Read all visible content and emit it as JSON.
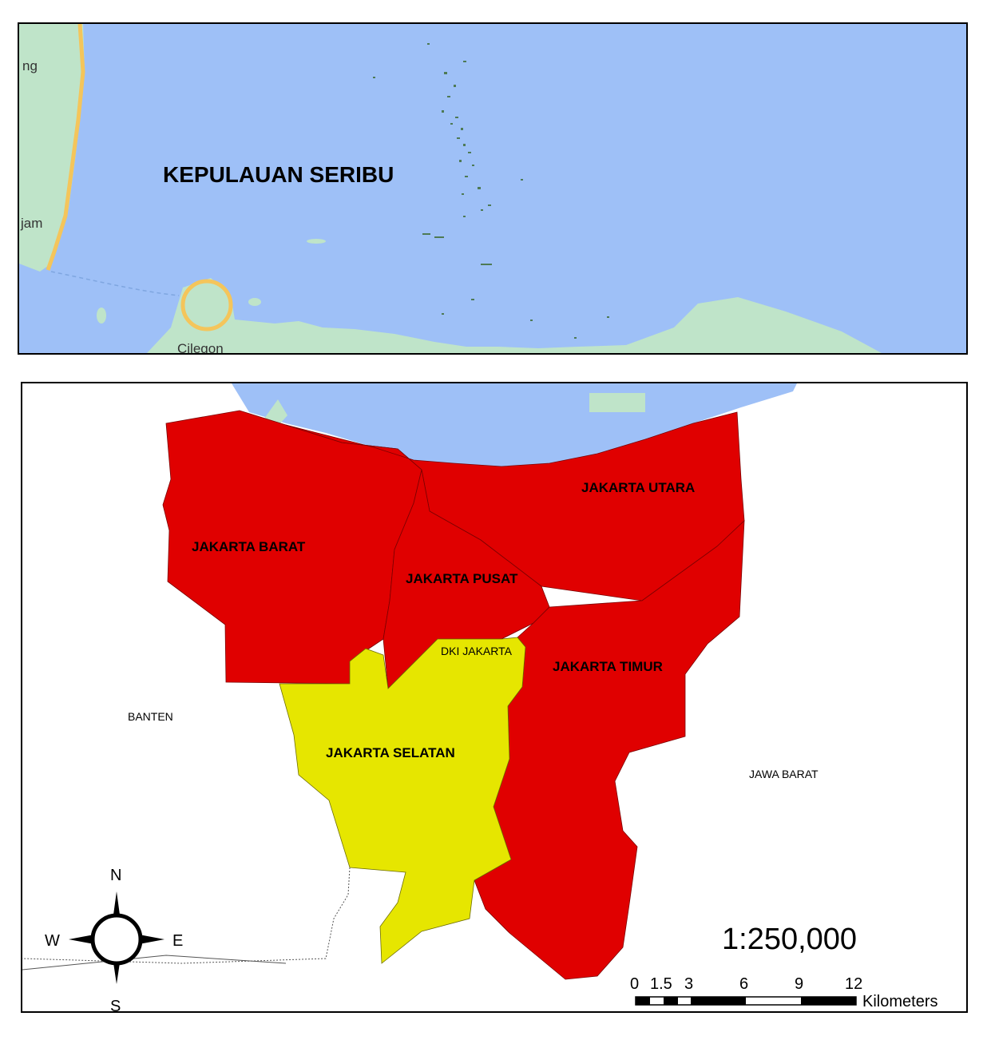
{
  "top_map": {
    "title": "KEPULAUAN SERIBU",
    "place_labels": [
      "ng",
      "jam",
      "Cilegon"
    ],
    "colors": {
      "sea": "#9ec0f7",
      "land": "#bfe4c9",
      "road": "#f4c55b",
      "islands": "#4e7a55"
    }
  },
  "bottom_map": {
    "regions": [
      {
        "name": "JAKARTA UTARA",
        "status": "red"
      },
      {
        "name": "JAKARTA BARAT",
        "status": "red"
      },
      {
        "name": "JAKARTA PUSAT",
        "status": "red"
      },
      {
        "name": "JAKARTA TIMUR",
        "status": "red"
      },
      {
        "name": "JAKARTA SELATAN",
        "status": "yellow"
      }
    ],
    "province_label": "DKI JAKARTA",
    "neighbor_labels": {
      "west": "BANTEN",
      "east": "JAWA BARAT"
    },
    "colors": {
      "red": "#e00000",
      "yellow": "#e6e600",
      "sea": "#9ec0f7",
      "outside": "#ffffff"
    }
  },
  "compass": {
    "north": "N",
    "south": "S",
    "east": "E",
    "west": "W"
  },
  "scale": {
    "ratio": "1:250,000",
    "ticks": [
      "0",
      "1.5",
      "3",
      "6",
      "9",
      "12"
    ],
    "unit": "Kilometers"
  }
}
